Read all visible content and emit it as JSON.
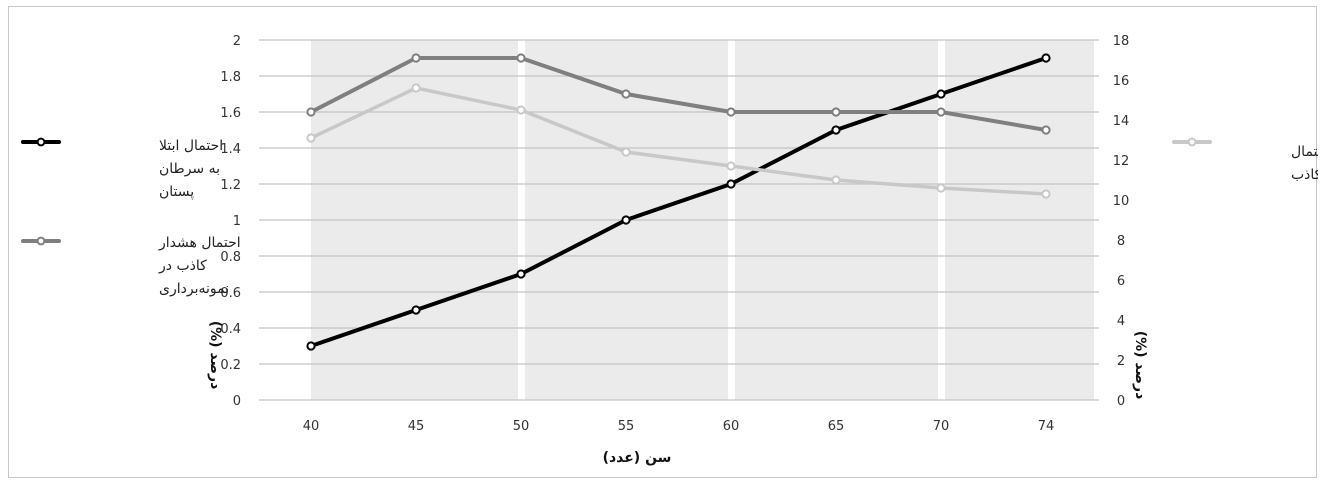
{
  "chart_data": {
    "type": "line",
    "x": [
      40,
      45,
      50,
      55,
      60,
      65,
      70,
      74
    ],
    "xlabel": "سن (عدد)",
    "ylabel_left": "درصد (%)",
    "ylabel_right": "درصد (%)",
    "ylim_left": [
      0,
      2
    ],
    "yticks_left": [
      "0",
      "0.2",
      "0.4",
      "0.6",
      "0.8",
      "1",
      "1.2",
      "1.4",
      "1.6",
      "1.8",
      "2"
    ],
    "ylim_right": [
      0,
      18
    ],
    "yticks_right": [
      "0",
      "2",
      "4",
      "6",
      "8",
      "10",
      "12",
      "14",
      "16",
      "18"
    ],
    "xticks": [
      "40",
      "45",
      "50",
      "55",
      "60",
      "65",
      "70",
      "74"
    ],
    "grid": true,
    "series": [
      {
        "name": "احتمال ابتلا به سرطان پستان",
        "legend_lines": [
          "احتمال ابتلا",
          "به سرطان",
          "پستان"
        ],
        "axis": "left",
        "color": "#000000",
        "values": [
          0.3,
          0.5,
          0.7,
          1.0,
          1.2,
          1.5,
          1.7,
          1.9
        ]
      },
      {
        "name": "احتمال هشدار کاذب در نمونه‌برداری",
        "legend_lines": [
          "احتمال هشدار",
          "کاذب در",
          "نمونه‌برداری"
        ],
        "axis": "left",
        "color": "#7f7f7f",
        "values": [
          1.6,
          1.9,
          1.9,
          1.7,
          1.6,
          1.6,
          1.6,
          1.5
        ]
      },
      {
        "name": "احتمال هشدار کاذب",
        "legend_lines": [
          "احتمال",
          "هشدار کاذب"
        ],
        "axis": "right",
        "color": "#c8c8c8",
        "values": [
          13.1,
          15.6,
          14.5,
          12.4,
          11.7,
          11.0,
          10.6,
          10.3
        ]
      }
    ]
  }
}
